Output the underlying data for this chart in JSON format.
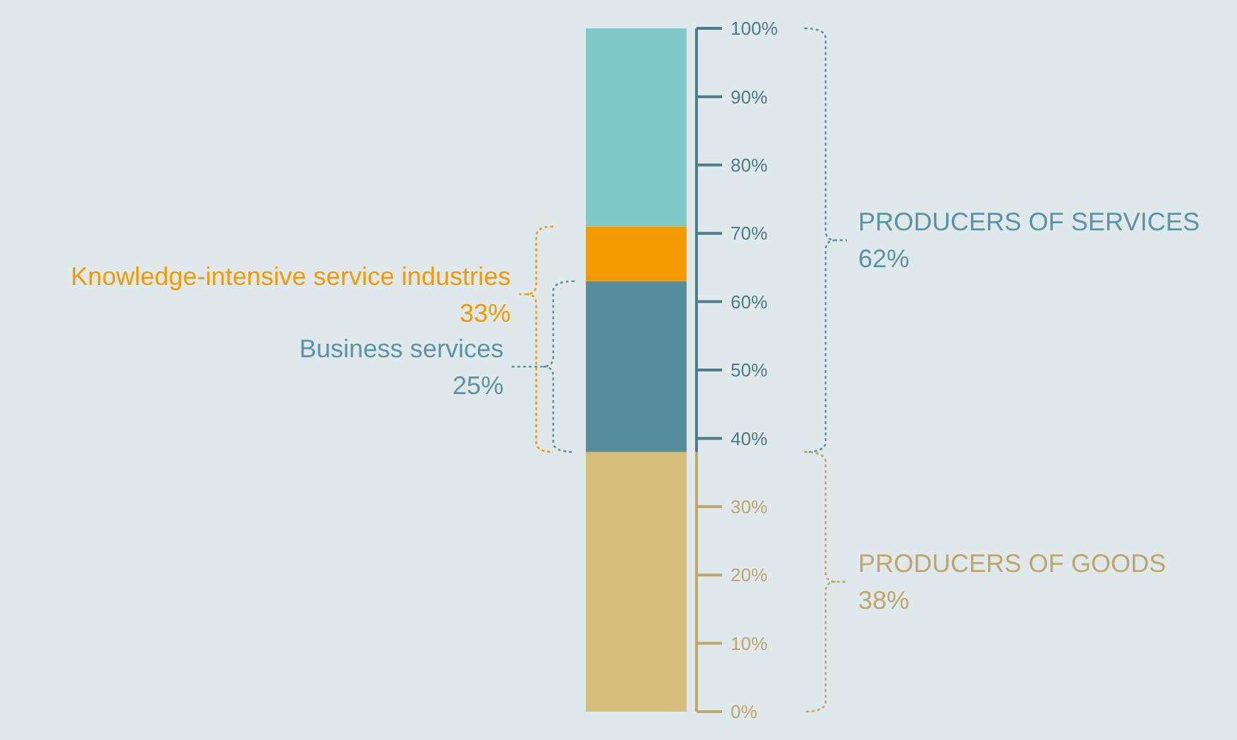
{
  "chart_data": {
    "type": "bar",
    "stacked": true,
    "categories": [
      null
    ],
    "series": [
      {
        "color": "#d6bd7c",
        "values": [
          38
        ]
      },
      {
        "color": "#568c9c",
        "values": [
          25
        ]
      },
      {
        "color": "#f39a00",
        "values": [
          8
        ]
      },
      {
        "color": "#80c9c8",
        "values": [
          29
        ]
      }
    ],
    "ylim": [
      0,
      100
    ],
    "yticks": [
      {
        "value": 0,
        "label": "0%"
      },
      {
        "value": 10,
        "label": "10%"
      },
      {
        "value": 20,
        "label": "20%"
      },
      {
        "value": 30,
        "label": "30%"
      },
      {
        "value": 40,
        "label": "40%"
      },
      {
        "value": 50,
        "label": "50%"
      },
      {
        "value": 60,
        "label": "60%"
      },
      {
        "value": 70,
        "label": "70%"
      },
      {
        "value": 80,
        "label": "80%"
      },
      {
        "value": 90,
        "label": "90%"
      },
      {
        "value": 100,
        "label": "100%"
      }
    ],
    "annotations": [
      "Knowledge-intensive service industries\n33%",
      "Business services\n25%",
      "PRODUCERS OF SERVICES\n62%",
      "PRODUCERS OF GOODS\n38%"
    ],
    "grid": false
  }
}
